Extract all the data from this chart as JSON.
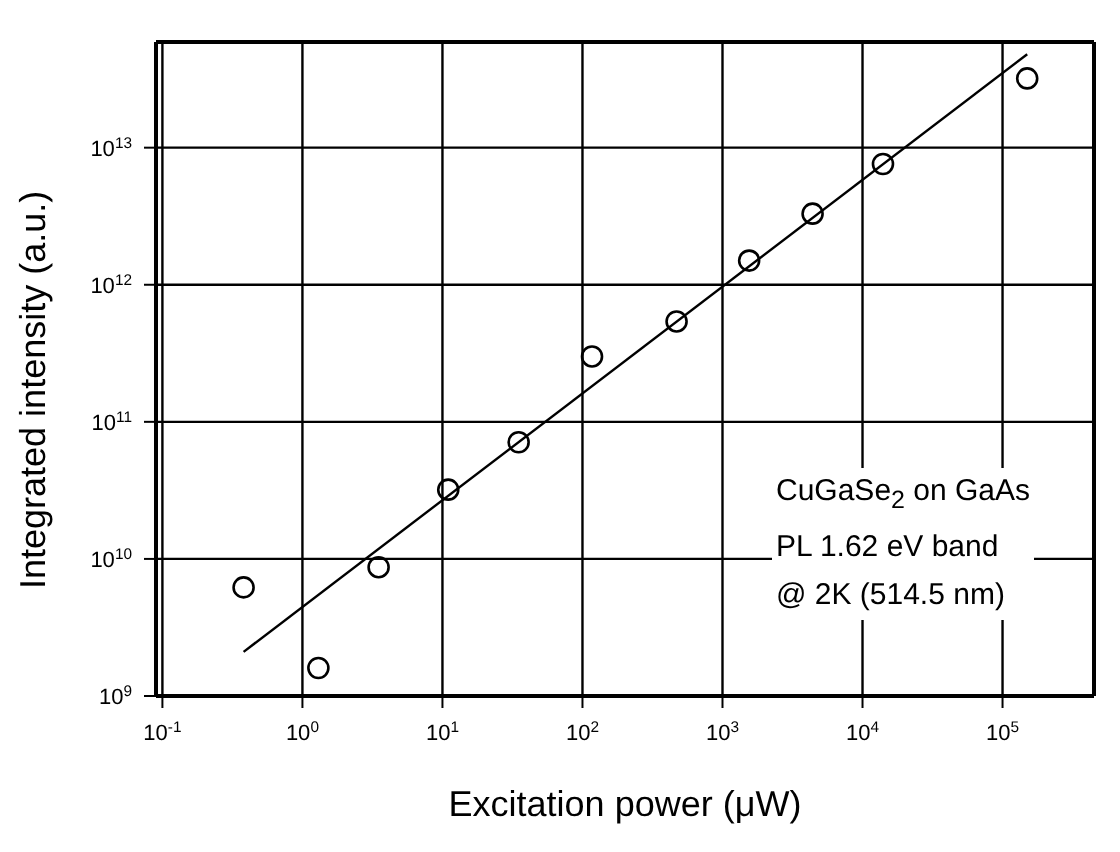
{
  "chart_data": {
    "type": "scatter",
    "xlabel": "Excitation power    (μW)",
    "ylabel": "Integrated intensity    (a.u.)",
    "log": "xy",
    "grid": true,
    "marker": "circle",
    "xlim": [
      0.09,
      450000
    ],
    "ylim": [
      1000000000,
      59000000000000
    ],
    "xticks": [
      {
        "value": 0.1,
        "label": "10$^{-1}$"
      },
      {
        "value": 1,
        "label": "10$^{0}$"
      },
      {
        "value": 10,
        "label": "10$^{1}$"
      },
      {
        "value": 100,
        "label": "10$^{2}$"
      },
      {
        "value": 1000,
        "label": "10$^{3}$"
      },
      {
        "value": 10000,
        "label": "10$^{4}$"
      },
      {
        "value": 100000,
        "label": "10$^{5}$"
      }
    ],
    "yticks": [
      {
        "value": 1000000000,
        "label": "10$^{9}$"
      },
      {
        "value": 10000000000,
        "label": "10$^{10}$"
      },
      {
        "value": 100000000000,
        "label": "10$^{11}$"
      },
      {
        "value": 1000000000000,
        "label": "10$^{12}$"
      },
      {
        "value": 10000000000000,
        "label": "10$^{13}$"
      }
    ],
    "series": [
      {
        "color": "#000000",
        "x": [
          0.38,
          1.3,
          3.5,
          11,
          35,
          117,
          470,
          1550,
          4400,
          14000,
          150000
        ],
        "values": [
          6200000000,
          1600000000,
          8700000000,
          32000000000,
          71000000000,
          300000000000,
          540000000000,
          1500000000000,
          3300000000000,
          7600000000000,
          32000000000000
        ]
      },
      {
        "type": "line",
        "color": "#000000",
        "marker": "none",
        "x": [
          0.38,
          150000
        ],
        "values": [
          2100000000,
          48000000000000
        ]
      }
    ],
    "annotations": [
      "CuGaSe$_{2}$ on GaAs",
      "PL 1.62 eV band",
      "@ 2K (514.5 nm)"
    ]
  }
}
